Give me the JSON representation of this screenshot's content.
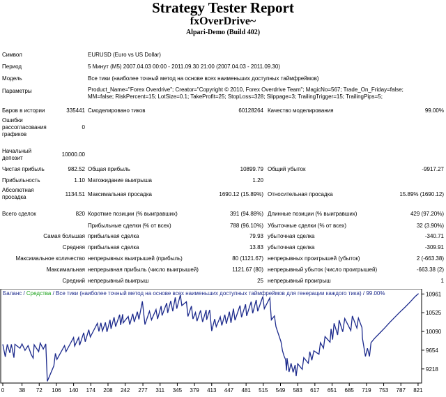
{
  "header": {
    "title": "Strategy Tester Report",
    "expert": "fxOverDrive~",
    "server": "Alpari-Demo (Build 402)"
  },
  "info": {
    "symbol_label": "Символ",
    "symbol_value": "EURUSD (Euro vs US Dollar)",
    "period_label": "Период",
    "period_value": "5 Минут (M5) 2007.04.03 00:00 - 2011.09.30 21:00 (2007.04.03 - 2011.09.30)",
    "model_label": "Модель",
    "model_value": "Все тики (наиболее точный метод на основе всех наименьших доступных таймфреймов)",
    "params_label": "Параметры",
    "params_line1": "Product_Name=\"Forex Overdrive\"; Creator=\"Copyright © 2010, Forex Overdrive Team\"; MagicNo=567; Trade_On_Friday=false;",
    "params_line2": "MM=false; RiskPercent=15; LotSize=0.1; TakeProfit=25; StopLoss=328; Slippage=3; TrailingTrigger=15; TrailingPips=5;"
  },
  "stats": {
    "bars_label": "Баров в истории",
    "bars_value": "335441",
    "ticks_label": "Смоделировано тиков",
    "ticks_value": "60128264",
    "quality_label": "Качество моделирования",
    "quality_value": "99.00%",
    "errors_label": "Ошибки рассогласования графиков",
    "errors_value": "0",
    "deposit_label": "Начальный депозит",
    "deposit_value": "10000.00",
    "net_label": "Чистая прибыль",
    "net_value": "982.52",
    "gross_profit_label": "Общая прибыль",
    "gross_profit_value": "10899.79",
    "gross_loss_label": "Общий убыток",
    "gross_loss_value": "-9917.27",
    "pf_label": "Прибыльность",
    "pf_value": "1.10",
    "payoff_label": "Матожидание выигрыша",
    "payoff_value": "1.20",
    "abs_dd_label": "Абсолютная просадка",
    "abs_dd_value": "1134.51",
    "max_dd_label": "Максимальная просадка",
    "max_dd_value": "1690.12 (15.89%)",
    "rel_dd_label": "Относительная просадка",
    "rel_dd_value": "15.89% (1690.12)",
    "total_label": "Всего сделок",
    "total_value": "820",
    "short_label": "Короткие позиции (% выигравших)",
    "short_value": "391 (94.88%)",
    "long_label": "Длинные позиции (% выигравших)",
    "long_value": "429 (97.20%)",
    "profit_trades_label": "Прибыльные сделки (% от всех)",
    "profit_trades_value": "788 (96.10%)",
    "loss_trades_label": "Убыточные сделки (% от всех)",
    "loss_trades_value": "32 (3.90%)",
    "largest_label": "Самая большая",
    "largest_profit_label": "прибыльная сделка",
    "largest_profit_value": "79.93",
    "largest_loss_label": "убыточная сделка",
    "largest_loss_value": "-340.71",
    "average_label": "Средняя",
    "average_profit_label": "прибыльная сделка",
    "average_profit_value": "13.83",
    "average_loss_label": "убыточная сделка",
    "average_loss_value": "-309.91",
    "max_count_label": "Максимальное количество",
    "max_cons_wins_label": "непрерывных выигрышей (прибыль)",
    "max_cons_wins_value": "80 (1121.67)",
    "max_cons_losses_label": "непрерывных проигрышей (убыток)",
    "max_cons_losses_value": "2 (-663.38)",
    "maximal_label": "Максимальная",
    "max_cons_profit_label": "непрерывная прибыль (число выигрышей)",
    "max_cons_profit_value": "1121.67 (80)",
    "max_cons_loss_label": "непрерывный убыток (число проигрышей)",
    "max_cons_loss_value": "-663.38 (2)",
    "avg_label": "Средний",
    "avg_wins_label": "непрерывный выигрыш",
    "avg_wins_value": "25",
    "avg_losses_label": "непрерывный проигрыш",
    "avg_losses_value": "1"
  },
  "chart_data": {
    "type": "line",
    "legend_balance": "Баланс",
    "legend_sep": " / ",
    "legend_equity": "Средства",
    "legend_rest": " / Все тики (наиболее точный метод на основе всех наименьших доступных таймфреймов для генерации каждого тика) / 99.00%",
    "colors": {
      "balance": "#1c2a8c",
      "equity": "#16a016",
      "text": "#1c2a8c",
      "axis": "#000000"
    },
    "ylim": [
      8890,
      11080
    ],
    "y_ticks": [
      9218,
      9654,
      10090,
      10525,
      10961
    ],
    "xlim": [
      0,
      828
    ],
    "x_ticks": [
      0,
      38,
      72,
      106,
      140,
      174,
      208,
      242,
      277,
      311,
      345,
      379,
      413,
      447,
      481,
      515,
      549,
      583,
      617,
      651,
      685,
      719,
      753,
      787,
      821
    ],
    "series": [
      {
        "x": [
          0,
          5,
          9,
          14,
          17,
          22,
          24,
          34,
          38,
          44,
          50,
          56,
          60,
          62,
          71,
          74,
          80,
          85,
          88,
          101,
          104,
          107,
          122,
          125,
          140,
          142,
          150,
          152,
          160,
          163,
          170,
          173,
          187,
          190,
          194,
          197,
          203,
          206,
          212,
          214,
          220,
          223,
          231,
          233,
          237,
          238,
          248,
          251,
          257,
          260,
          266,
          269,
          276,
          281,
          290,
          294,
          303,
          306,
          313,
          315,
          324,
          326,
          332,
          336,
          341,
          344,
          351,
          354,
          363,
          366,
          373,
          376,
          381,
          384,
          391,
          395,
          402,
          403,
          409,
          413,
          419,
          422,
          430,
          433,
          439,
          442,
          448,
          451,
          456,
          459,
          469,
          472,
          480,
          482,
          491,
          494,
          501,
          504,
          514,
          517,
          528,
          531,
          537,
          540,
          550,
          553,
          556,
          559,
          561,
          562,
          566,
          570,
          574,
          578,
          580,
          583,
          592,
          595,
          604,
          607,
          611,
          615,
          625,
          628,
          634,
          637,
          647,
          649,
          652,
          655,
          662,
          665,
          672,
          676,
          688,
          691,
          700,
          703,
          710,
          711,
          717,
          721,
          725,
          728,
          735,
          745,
          755,
          765,
          775,
          785,
          795,
          805,
          815,
          822
        ],
        "y": [
          9790,
          9500,
          9790,
          9590,
          9790,
          9480,
          9790,
          9700,
          9800,
          9650,
          9760,
          9560,
          9470,
          9780,
          9620,
          9820,
          9680,
          9800,
          8930,
          9290,
          9580,
          9440,
          9760,
          9620,
          9950,
          9750,
          9950,
          9770,
          10060,
          9850,
          10130,
          9960,
          10280,
          10090,
          10290,
          10100,
          10300,
          10080,
          10360,
          10150,
          10420,
          10200,
          10480,
          10240,
          10490,
          10290,
          10440,
          10250,
          10500,
          10310,
          10550,
          10370,
          10790,
          10250,
          10560,
          10360,
          10600,
          10380,
          10680,
          10460,
          10750,
          10520,
          10800,
          10560,
          10880,
          10620,
          10940,
          10690,
          10780,
          10440,
          10680,
          10380,
          10530,
          10330,
          10580,
          10310,
          10590,
          10360,
          10590,
          10100,
          10380,
          10200,
          10430,
          10230,
          10480,
          10270,
          10550,
          10290,
          10620,
          10350,
          10690,
          10420,
          10720,
          10450,
          10780,
          10510,
          10820,
          10560,
          10900,
          10620,
          10870,
          10360,
          10450,
          10200,
          9850,
          9640,
          9520,
          9440,
          9180,
          9470,
          9150,
          9350,
          9140,
          9310,
          9050,
          9340,
          9210,
          9480,
          9350,
          9620,
          9420,
          9640,
          9560,
          9830,
          9700,
          9970,
          9840,
          10150,
          9900,
          10280,
          10010,
          10350,
          10080,
          10390,
          10110,
          10450,
          10170,
          10400,
          10180,
          9930,
          9510,
          9700,
          9510,
          9830,
          9930,
          10050,
          10170,
          10300,
          10420,
          10540,
          10650,
          10770,
          10900,
          10970
        ]
      }
    ]
  }
}
